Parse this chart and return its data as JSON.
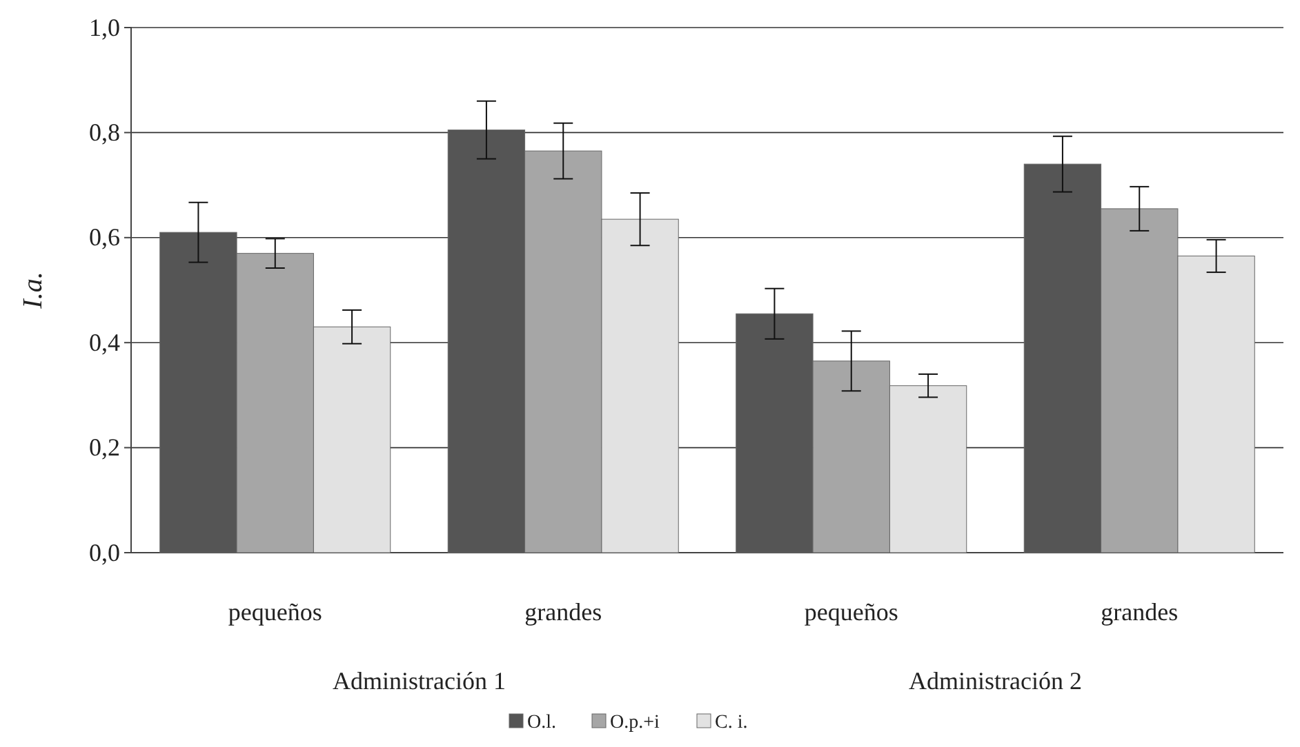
{
  "chart_data": {
    "type": "bar",
    "ylabel": "I.a.",
    "categories": [
      "pequeños",
      "grandes",
      "pequeños",
      "grandes"
    ],
    "annotations": [
      "Administración 1",
      "Administración 2"
    ],
    "series": [
      {
        "name": "O.l.",
        "color": "#555555",
        "values": [
          0.61,
          0.805,
          0.455,
          0.74
        ],
        "errors": [
          0.057,
          0.055,
          0.048,
          0.053
        ]
      },
      {
        "name": "O.p.+i",
        "color": "#a6a6a6",
        "values": [
          0.57,
          0.765,
          0.365,
          0.655
        ],
        "errors": [
          0.028,
          0.053,
          0.057,
          0.042
        ]
      },
      {
        "name": "C. i.",
        "color": "#e2e2e2",
        "values": [
          0.43,
          0.635,
          0.318,
          0.565
        ],
        "errors": [
          0.032,
          0.05,
          0.022,
          0.031
        ]
      }
    ],
    "ylim": [
      0,
      1
    ],
    "yticks": [
      {
        "value": 0,
        "label": "0,0"
      },
      {
        "value": 0.2,
        "label": "0,2"
      },
      {
        "value": 0.4,
        "label": "0,4"
      },
      {
        "value": 0.6,
        "label": "0,6"
      },
      {
        "value": 0.8,
        "label": "0,8"
      },
      {
        "value": 1,
        "label": "1,0"
      }
    ],
    "grid": "y",
    "legend": "bottom"
  }
}
